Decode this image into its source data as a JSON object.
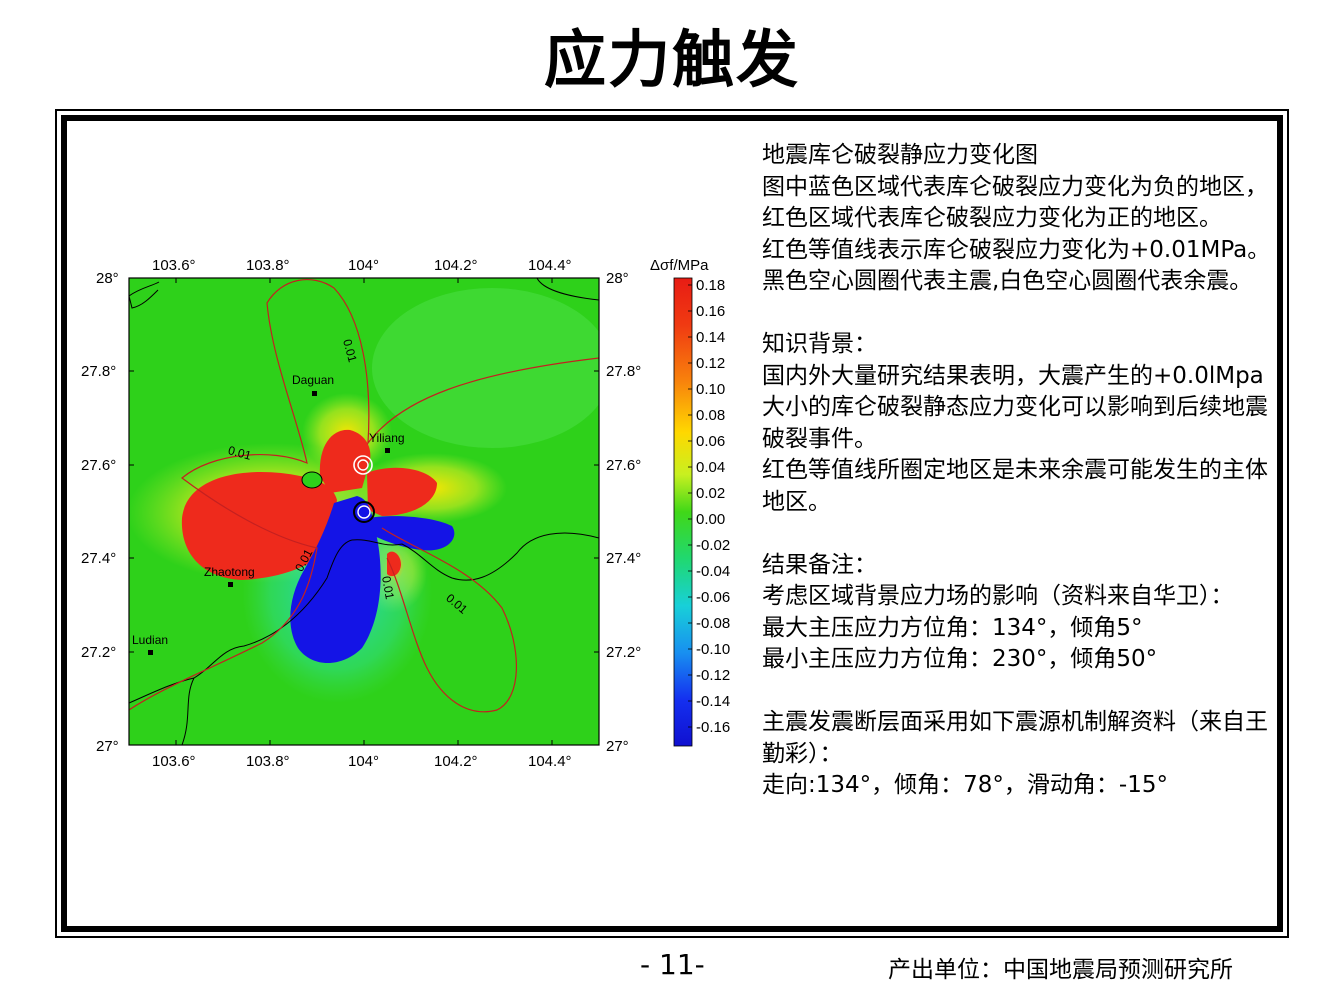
{
  "title": "应力触发",
  "map": {
    "lon_ticks_top": [
      "103.6°",
      "103.8°",
      "104°",
      "104.2°",
      "104.4°"
    ],
    "lon_ticks_bottom": [
      "103.6°",
      "103.8°",
      "104°",
      "104.2°",
      "104.4°"
    ],
    "lat_ticks_left": [
      "28°",
      "27.8°",
      "27.6°",
      "27.4°",
      "27.2°",
      "27°"
    ],
    "lat_ticks_right": [
      "28°",
      "27.8°",
      "27.6°",
      "27.4°",
      "27.2°",
      "27°"
    ],
    "cities": [
      {
        "name": "Daguan"
      },
      {
        "name": "Yiliang"
      },
      {
        "name": "Zhaotong"
      },
      {
        "name": "Ludian"
      }
    ],
    "contour_labels": [
      "0.01",
      "0.01",
      "0.01",
      "0.01",
      "0.01"
    ],
    "colorbar": {
      "label": "Δσf/MPa",
      "ticks": [
        "0.18",
        "0.16",
        "0.14",
        "0.12",
        "0.10",
        "0.08",
        "0.06",
        "0.04",
        "0.02",
        "0.00",
        "-0.02",
        "-0.04",
        "-0.06",
        "-0.08",
        "-0.10",
        "-0.12",
        "-0.14",
        "-0.16"
      ]
    },
    "colors": {
      "background_field": "#2ed11a",
      "positive": "#ee2a1c",
      "negative": "#1414e6",
      "contour": "#c42020"
    }
  },
  "description": {
    "p1": "地震库仑破裂静应力变化图",
    "p2": "图中蓝色区域代表库仑破裂应力变化为负的地区，红色区域代表库仑破裂应力变化为正的地区。",
    "p3": "红色等值线表示库仑破裂应力变化为+0.01MPa。黑色空心圆圈代表主震,白色空心圆圈代表余震。",
    "p4": "知识背景：",
    "p5": "国内外大量研究结果表明，大震产生的+0.0lMpa大小的库仑破裂静态应力变化可以影响到后续地震破裂事件。",
    "p6": "红色等值线所圈定地区是未来余震可能发生的主体地区。",
    "p7": "结果备注：",
    "p8": "考虑区域背景应力场的影响（资料来自华卫）：",
    "p9": "最大主压应力方位角：134°，倾角5°",
    "p10": "最小主压应力方位角：230°，倾角50°",
    "p11": "主震发震断层面采用如下震源机制解资料（来自王勤彩）：",
    "p12": "走向:134°，倾角：78°，滑动角：-15°"
  },
  "footer": {
    "page_number": "- 11-",
    "producer": "产出单位：中国地震局预测研究所"
  }
}
